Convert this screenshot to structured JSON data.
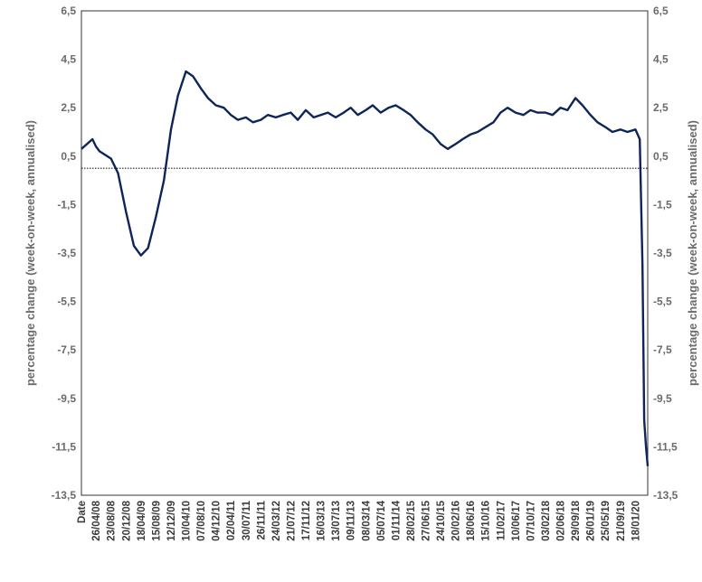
{
  "chart_data": {
    "type": "line",
    "ylabel_left": "percentage change (week-on-week, annualised)",
    "ylabel_right": "percentage change (week-on-week, annualised)",
    "ylim": [
      -13.5,
      6.5
    ],
    "y_ticks": [
      "6,5",
      "4,5",
      "2,5",
      "0,5",
      "-1,5",
      "-3,5",
      "-5,5",
      "-7,5",
      "-9,5",
      "-11,5",
      "-13,5"
    ],
    "y_tick_values": [
      6.5,
      4.5,
      2.5,
      0.5,
      -1.5,
      -3.5,
      -5.5,
      -7.5,
      -9.5,
      -11.5,
      -13.5
    ],
    "x_ticks": [
      "Date",
      "26/04/08",
      "23/08/08",
      "20/12/08",
      "18/04/09",
      "15/08/09",
      "12/12/09",
      "10/04/10",
      "07/08/10",
      "04/12/10",
      "02/04/11",
      "30/07/11",
      "26/11/11",
      "24/03/12",
      "21/07/12",
      "17/11/12",
      "16/03/13",
      "13/07/13",
      "09/11/13",
      "08/03/14",
      "05/07/14",
      "01/11/14",
      "28/02/15",
      "27/06/15",
      "24/10/15",
      "20/02/16",
      "18/06/16",
      "15/10/16",
      "11/02/17",
      "10/06/17",
      "07/10/17",
      "03/02/18",
      "02/06/18",
      "29/09/18",
      "26/01/19",
      "25/05/19",
      "21/09/19",
      "18/01/20"
    ],
    "reference_line": 0.0,
    "grid": false,
    "series": [
      {
        "color": "#0d2559",
        "x": [
          "01/01/08",
          "29/03/08",
          "26/04/08",
          "24/05/08",
          "23/08/08",
          "18/10/08",
          "20/12/08",
          "21/02/09",
          "18/04/09",
          "13/06/09",
          "15/08/09",
          "17/10/09",
          "12/12/09",
          "06/02/10",
          "10/04/10",
          "05/06/10",
          "07/08/10",
          "02/10/10",
          "04/12/10",
          "05/02/11",
          "02/04/11",
          "28/05/11",
          "30/07/11",
          "24/09/11",
          "26/11/11",
          "21/01/12",
          "24/03/12",
          "19/05/12",
          "21/07/12",
          "15/09/12",
          "17/11/12",
          "19/01/13",
          "16/03/13",
          "11/05/13",
          "13/07/13",
          "14/09/13",
          "09/11/13",
          "04/01/14",
          "08/03/14",
          "03/05/14",
          "05/07/14",
          "06/09/14",
          "01/11/14",
          "03/01/15",
          "28/02/15",
          "25/04/15",
          "27/06/15",
          "22/08/15",
          "24/10/15",
          "19/12/15",
          "20/02/16",
          "16/04/16",
          "18/06/16",
          "13/08/16",
          "15/10/16",
          "17/12/16",
          "11/02/17",
          "08/04/17",
          "10/06/17",
          "12/08/17",
          "07/10/17",
          "02/12/17",
          "03/02/18",
          "31/03/18",
          "02/06/18",
          "28/07/18",
          "29/09/18",
          "24/11/18",
          "26/01/19",
          "23/03/19",
          "25/05/19",
          "20/07/19",
          "21/09/19",
          "16/11/19",
          "18/01/20",
          "22/02/20",
          "14/03/20",
          "28/03/20",
          "11/04/20",
          "25/04/20"
        ],
        "values": [
          0.8,
          1.2,
          0.9,
          0.7,
          0.4,
          -0.2,
          -1.8,
          -3.2,
          -3.6,
          -3.3,
          -2.0,
          -0.5,
          1.6,
          3.0,
          4.0,
          3.8,
          3.3,
          2.9,
          2.6,
          2.5,
          2.2,
          2.0,
          2.1,
          1.9,
          2.0,
          2.2,
          2.1,
          2.2,
          2.3,
          2.0,
          2.4,
          2.1,
          2.2,
          2.3,
          2.1,
          2.3,
          2.5,
          2.2,
          2.4,
          2.6,
          2.3,
          2.5,
          2.6,
          2.4,
          2.2,
          1.9,
          1.6,
          1.4,
          1.0,
          0.8,
          1.0,
          1.2,
          1.4,
          1.5,
          1.7,
          1.9,
          2.3,
          2.5,
          2.3,
          2.2,
          2.4,
          2.3,
          2.3,
          2.2,
          2.5,
          2.4,
          2.9,
          2.6,
          2.2,
          1.9,
          1.7,
          1.5,
          1.6,
          1.5,
          1.6,
          1.2,
          -4.0,
          -10.4,
          -11.5,
          -12.3
        ]
      }
    ]
  }
}
